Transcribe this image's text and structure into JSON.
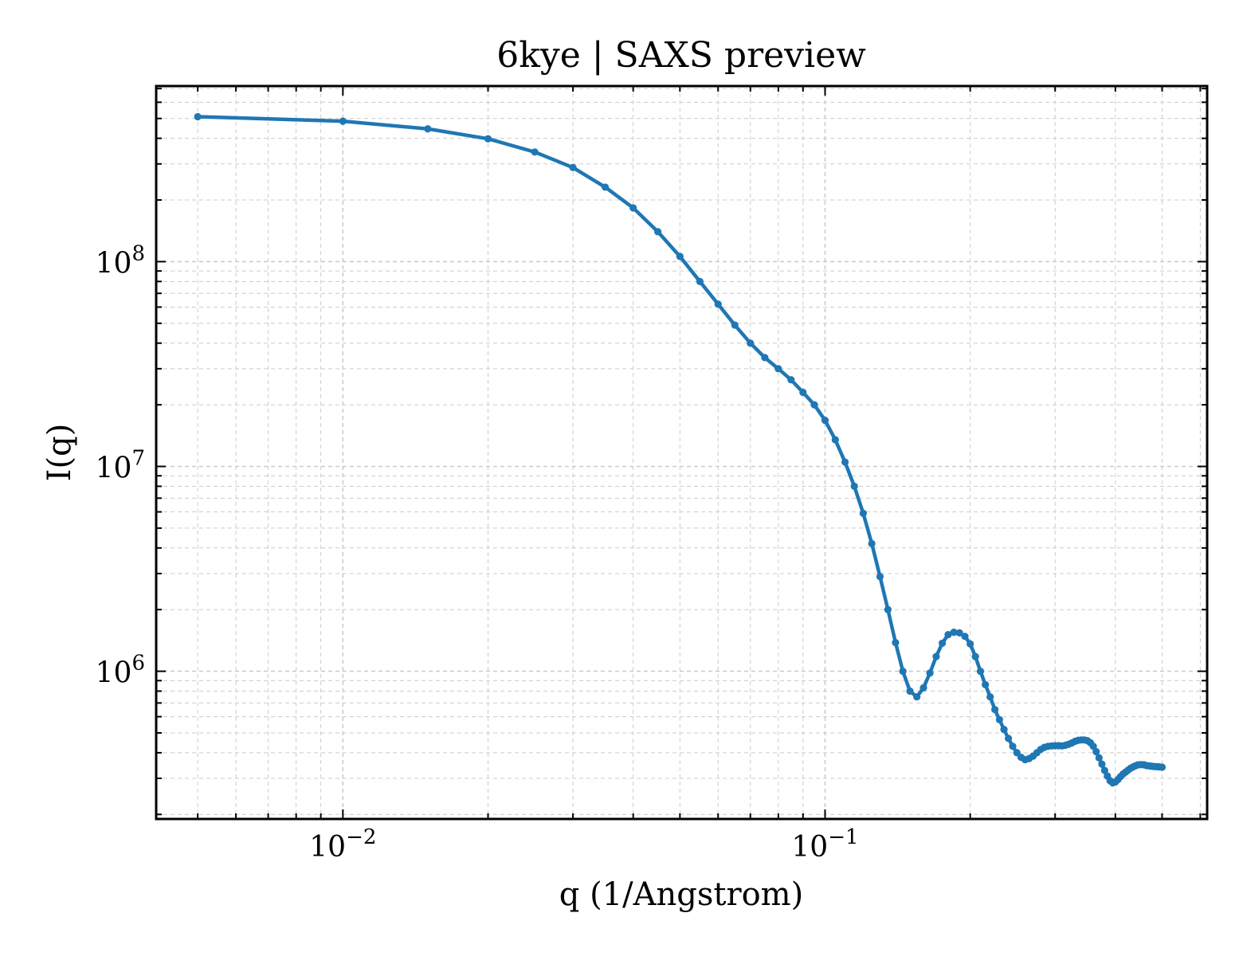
{
  "chart_data": {
    "type": "line",
    "title": "6kye | SAXS preview",
    "xlabel": "q (1/Angstrom)",
    "ylabel": "I(q)",
    "xscale": "log",
    "yscale": "log",
    "xlim": [
      0.0041,
      0.62
    ],
    "ylim": [
      190000,
      720000000
    ],
    "grid": "on (major and minor, dashed)",
    "legend": "none",
    "line_color": "#1f77b4",
    "x_ticks": [
      {
        "base": "10",
        "exp": "−2",
        "value": 0.01
      },
      {
        "base": "10",
        "exp": "−1",
        "value": 0.1
      }
    ],
    "y_ticks": [
      {
        "base": "10",
        "exp": "6",
        "value": 1000000
      },
      {
        "base": "10",
        "exp": "7",
        "value": 10000000
      },
      {
        "base": "10",
        "exp": "8",
        "value": 100000000
      }
    ],
    "series": [
      {
        "marker": "circle",
        "x": [
          0.005,
          0.01,
          0.015,
          0.02,
          0.025,
          0.03,
          0.035,
          0.04,
          0.045,
          0.05,
          0.055,
          0.06,
          0.065,
          0.07,
          0.075,
          0.08,
          0.085,
          0.09,
          0.095,
          0.1,
          0.105,
          0.11,
          0.115,
          0.12,
          0.125,
          0.13,
          0.135,
          0.14,
          0.145,
          0.15,
          0.155,
          0.16,
          0.165,
          0.17,
          0.175,
          0.18,
          0.185,
          0.19,
          0.195,
          0.2,
          0.205,
          0.21,
          0.215,
          0.22,
          0.225,
          0.23,
          0.235,
          0.24,
          0.245,
          0.25,
          0.255,
          0.26,
          0.265,
          0.27,
          0.275,
          0.28,
          0.285,
          0.29,
          0.295,
          0.3,
          0.305,
          0.31,
          0.315,
          0.32,
          0.325,
          0.33,
          0.335,
          0.34,
          0.345,
          0.35,
          0.355,
          0.36,
          0.365,
          0.37,
          0.375,
          0.38,
          0.385,
          0.39,
          0.395,
          0.4,
          0.405,
          0.41,
          0.415,
          0.42,
          0.425,
          0.43,
          0.435,
          0.44,
          0.445,
          0.45,
          0.455,
          0.46,
          0.465,
          0.47,
          0.475,
          0.48,
          0.485,
          0.49,
          0.495,
          0.5
        ],
        "y": [
          510000000,
          485000000,
          445000000,
          398000000,
          343000000,
          288000000,
          231000000,
          183000000,
          140000000,
          106000000,
          80000000,
          62000000,
          49000000,
          40000000,
          34000000,
          30000000,
          26500000,
          23000000,
          20000000,
          16800000,
          13500000,
          10500000,
          8000000,
          5900000,
          4200000,
          2900000,
          2000000,
          1380000,
          1000000,
          800000,
          750000,
          830000,
          980000,
          1180000,
          1370000,
          1510000,
          1550000,
          1540000,
          1480000,
          1360000,
          1180000,
          1000000,
          860000,
          750000,
          650000,
          580000,
          520000,
          470000,
          430000,
          400000,
          380000,
          370000,
          375000,
          385000,
          400000,
          415000,
          425000,
          430000,
          432000,
          433000,
          433000,
          432000,
          435000,
          440000,
          447000,
          455000,
          460000,
          462000,
          462000,
          458000,
          448000,
          430000,
          405000,
          378000,
          352000,
          328000,
          308000,
          292000,
          285000,
          288000,
          296000,
          306000,
          315000,
          322000,
          329000,
          336000,
          341000,
          345000,
          349000,
          350000,
          350000,
          349000,
          346000,
          345000,
          344000,
          343000,
          342000,
          342000,
          341000,
          340000
        ]
      }
    ]
  }
}
